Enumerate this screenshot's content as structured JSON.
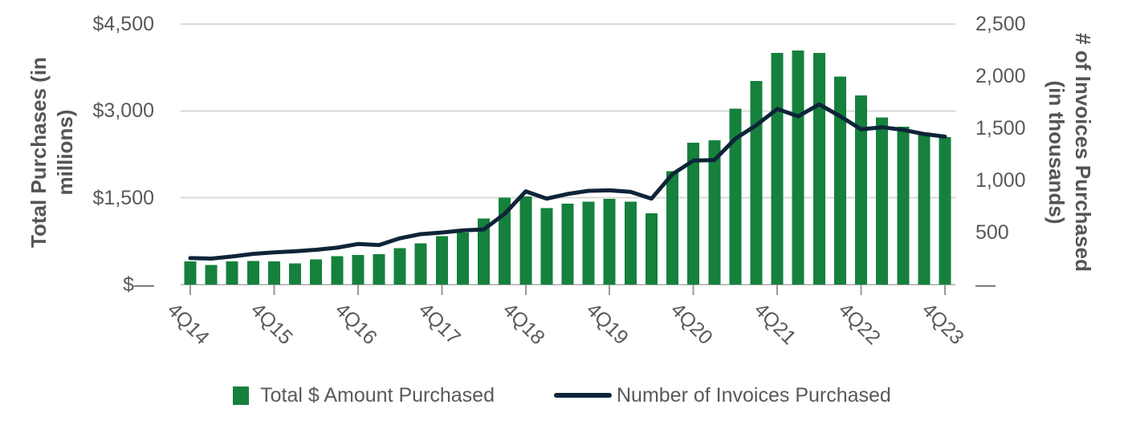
{
  "chart_data": {
    "type": "bar-line-combo",
    "categories": [
      "4Q14",
      "1Q15",
      "2Q15",
      "3Q15",
      "4Q15",
      "1Q16",
      "2Q16",
      "3Q16",
      "4Q16",
      "1Q17",
      "2Q17",
      "3Q17",
      "4Q17",
      "1Q18",
      "2Q18",
      "3Q18",
      "4Q18",
      "1Q19",
      "2Q19",
      "3Q19",
      "4Q19",
      "1Q20",
      "2Q20",
      "3Q20",
      "4Q20",
      "1Q21",
      "2Q21",
      "3Q21",
      "4Q21",
      "1Q22",
      "2Q22",
      "3Q22",
      "4Q22",
      "1Q23",
      "2Q23",
      "3Q23",
      "4Q23"
    ],
    "x_tick_every": 4,
    "x_tick_labels": [
      "4Q14",
      "4Q15",
      "4Q16",
      "4Q17",
      "4Q18",
      "4Q19",
      "4Q20",
      "4Q21",
      "4Q22",
      "4Q23"
    ],
    "series": [
      {
        "name": "Total $ Amount Purchased",
        "type": "bar",
        "axis": "left",
        "color": "#15813C",
        "values": [
          400,
          340,
          400,
          410,
          405,
          365,
          435,
          490,
          510,
          525,
          630,
          710,
          840,
          900,
          1145,
          1500,
          1520,
          1320,
          1400,
          1430,
          1485,
          1430,
          1230,
          1960,
          2450,
          2490,
          3040,
          3520,
          4000,
          4040,
          4000,
          3590,
          3270,
          2890,
          2725,
          2605,
          2550
        ]
      },
      {
        "name": "Number of Invoices Purchased",
        "type": "line",
        "axis": "right",
        "color": "#0E2439",
        "values": [
          255,
          250,
          270,
          295,
          310,
          320,
          335,
          355,
          390,
          380,
          445,
          485,
          500,
          520,
          530,
          680,
          895,
          825,
          870,
          900,
          905,
          890,
          825,
          1060,
          1190,
          1195,
          1400,
          1530,
          1685,
          1615,
          1730,
          1615,
          1490,
          1510,
          1485,
          1445,
          1420
        ]
      }
    ],
    "left_axis": {
      "title": "Total Purchases (in millions)",
      "title_lines": [
        "Total Purchases (in",
        "millions)"
      ],
      "max": 4500,
      "tick_values": [
        0,
        1500,
        3000,
        4500
      ],
      "tick_labels": [
        "$—",
        "$1,500",
        "$3,000",
        "$4,500"
      ]
    },
    "right_axis": {
      "title": "# of Invoices Purchased (in thousands)",
      "title_lines": [
        "# of Invoices Purchased",
        "(in thousands)"
      ],
      "max": 2500,
      "tick_values": [
        0,
        500,
        1000,
        1500,
        2000,
        2500
      ],
      "tick_labels": [
        "—",
        "500",
        "1,000",
        "1,500",
        "2,000",
        "2,500"
      ]
    },
    "grid": {
      "on": true,
      "gridline_left_values": [
        1500,
        3000,
        4500
      ],
      "gridline_color": "#D9D9D9",
      "baseline_color": "#C0C0C0",
      "tick_mark_color": "#999999"
    },
    "legend": {
      "position": "bottom",
      "entries": [
        {
          "label": "Total $ Amount Purchased",
          "swatch": "square"
        },
        {
          "label": "Number of Invoices Purchased",
          "swatch": "line"
        }
      ]
    }
  },
  "colors": {
    "bar_green": "#15813C",
    "line_navy": "#0E2439",
    "tick_text": "#595959",
    "axis_title_text": "#555555",
    "background": "#FFFFFF"
  }
}
